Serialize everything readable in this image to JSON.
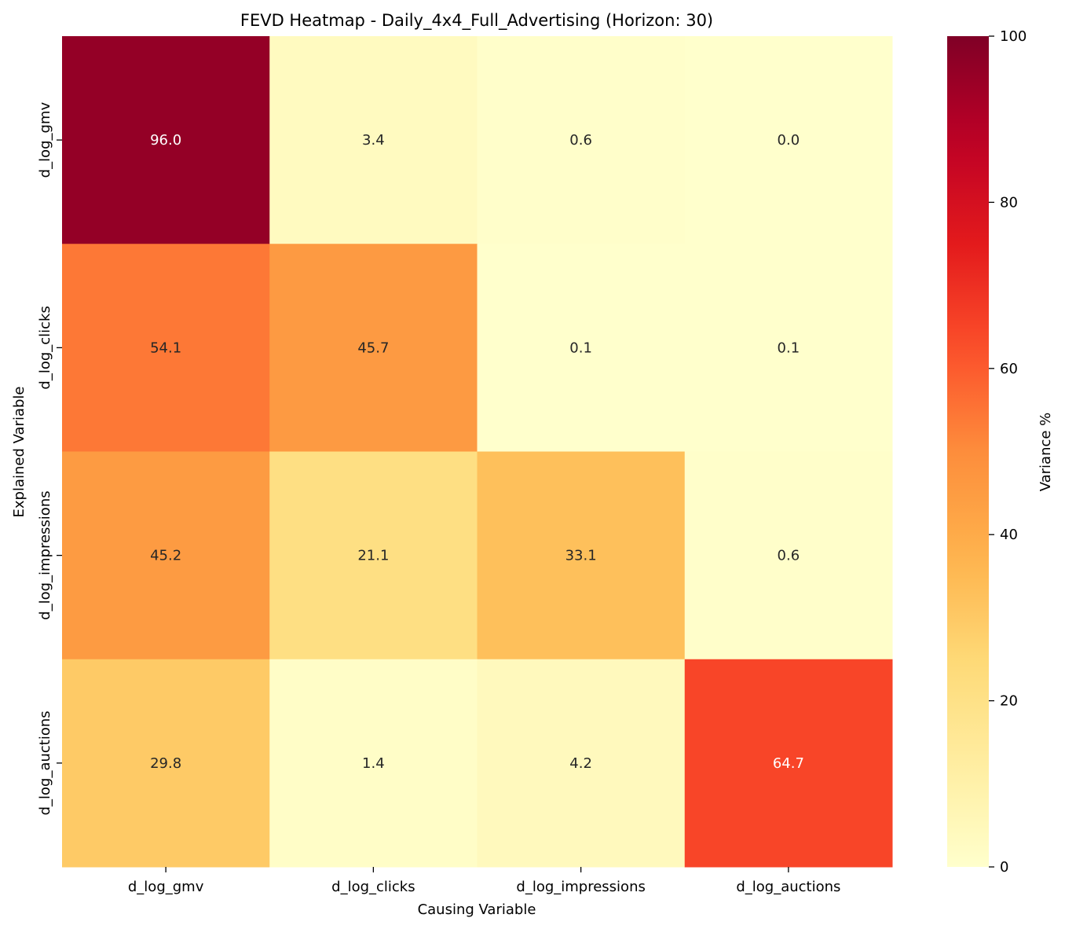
{
  "chart_data": {
    "type": "heatmap",
    "title": "FEVD Heatmap - Daily_4x4_Full_Advertising (Horizon: 30)",
    "xlabel": "Causing Variable",
    "ylabel": "Explained Variable",
    "x_categories": [
      "d_log_gmv",
      "d_log_clicks",
      "d_log_impressions",
      "d_log_auctions"
    ],
    "y_categories": [
      "d_log_gmv",
      "d_log_clicks",
      "d_log_impressions",
      "d_log_auctions"
    ],
    "values": [
      [
        96.0,
        3.4,
        0.6,
        0.0
      ],
      [
        54.1,
        45.7,
        0.1,
        0.1
      ],
      [
        45.2,
        21.1,
        33.1,
        0.6
      ],
      [
        29.8,
        1.4,
        4.2,
        64.7
      ]
    ],
    "value_format": "one decimal",
    "colormap": "YlOrRd",
    "color_range": [
      0,
      100
    ],
    "colorbar": {
      "label": "Variance %",
      "ticks": [
        0,
        20,
        40,
        60,
        80,
        100
      ]
    },
    "grid": false,
    "legend": "colorbar on right"
  }
}
